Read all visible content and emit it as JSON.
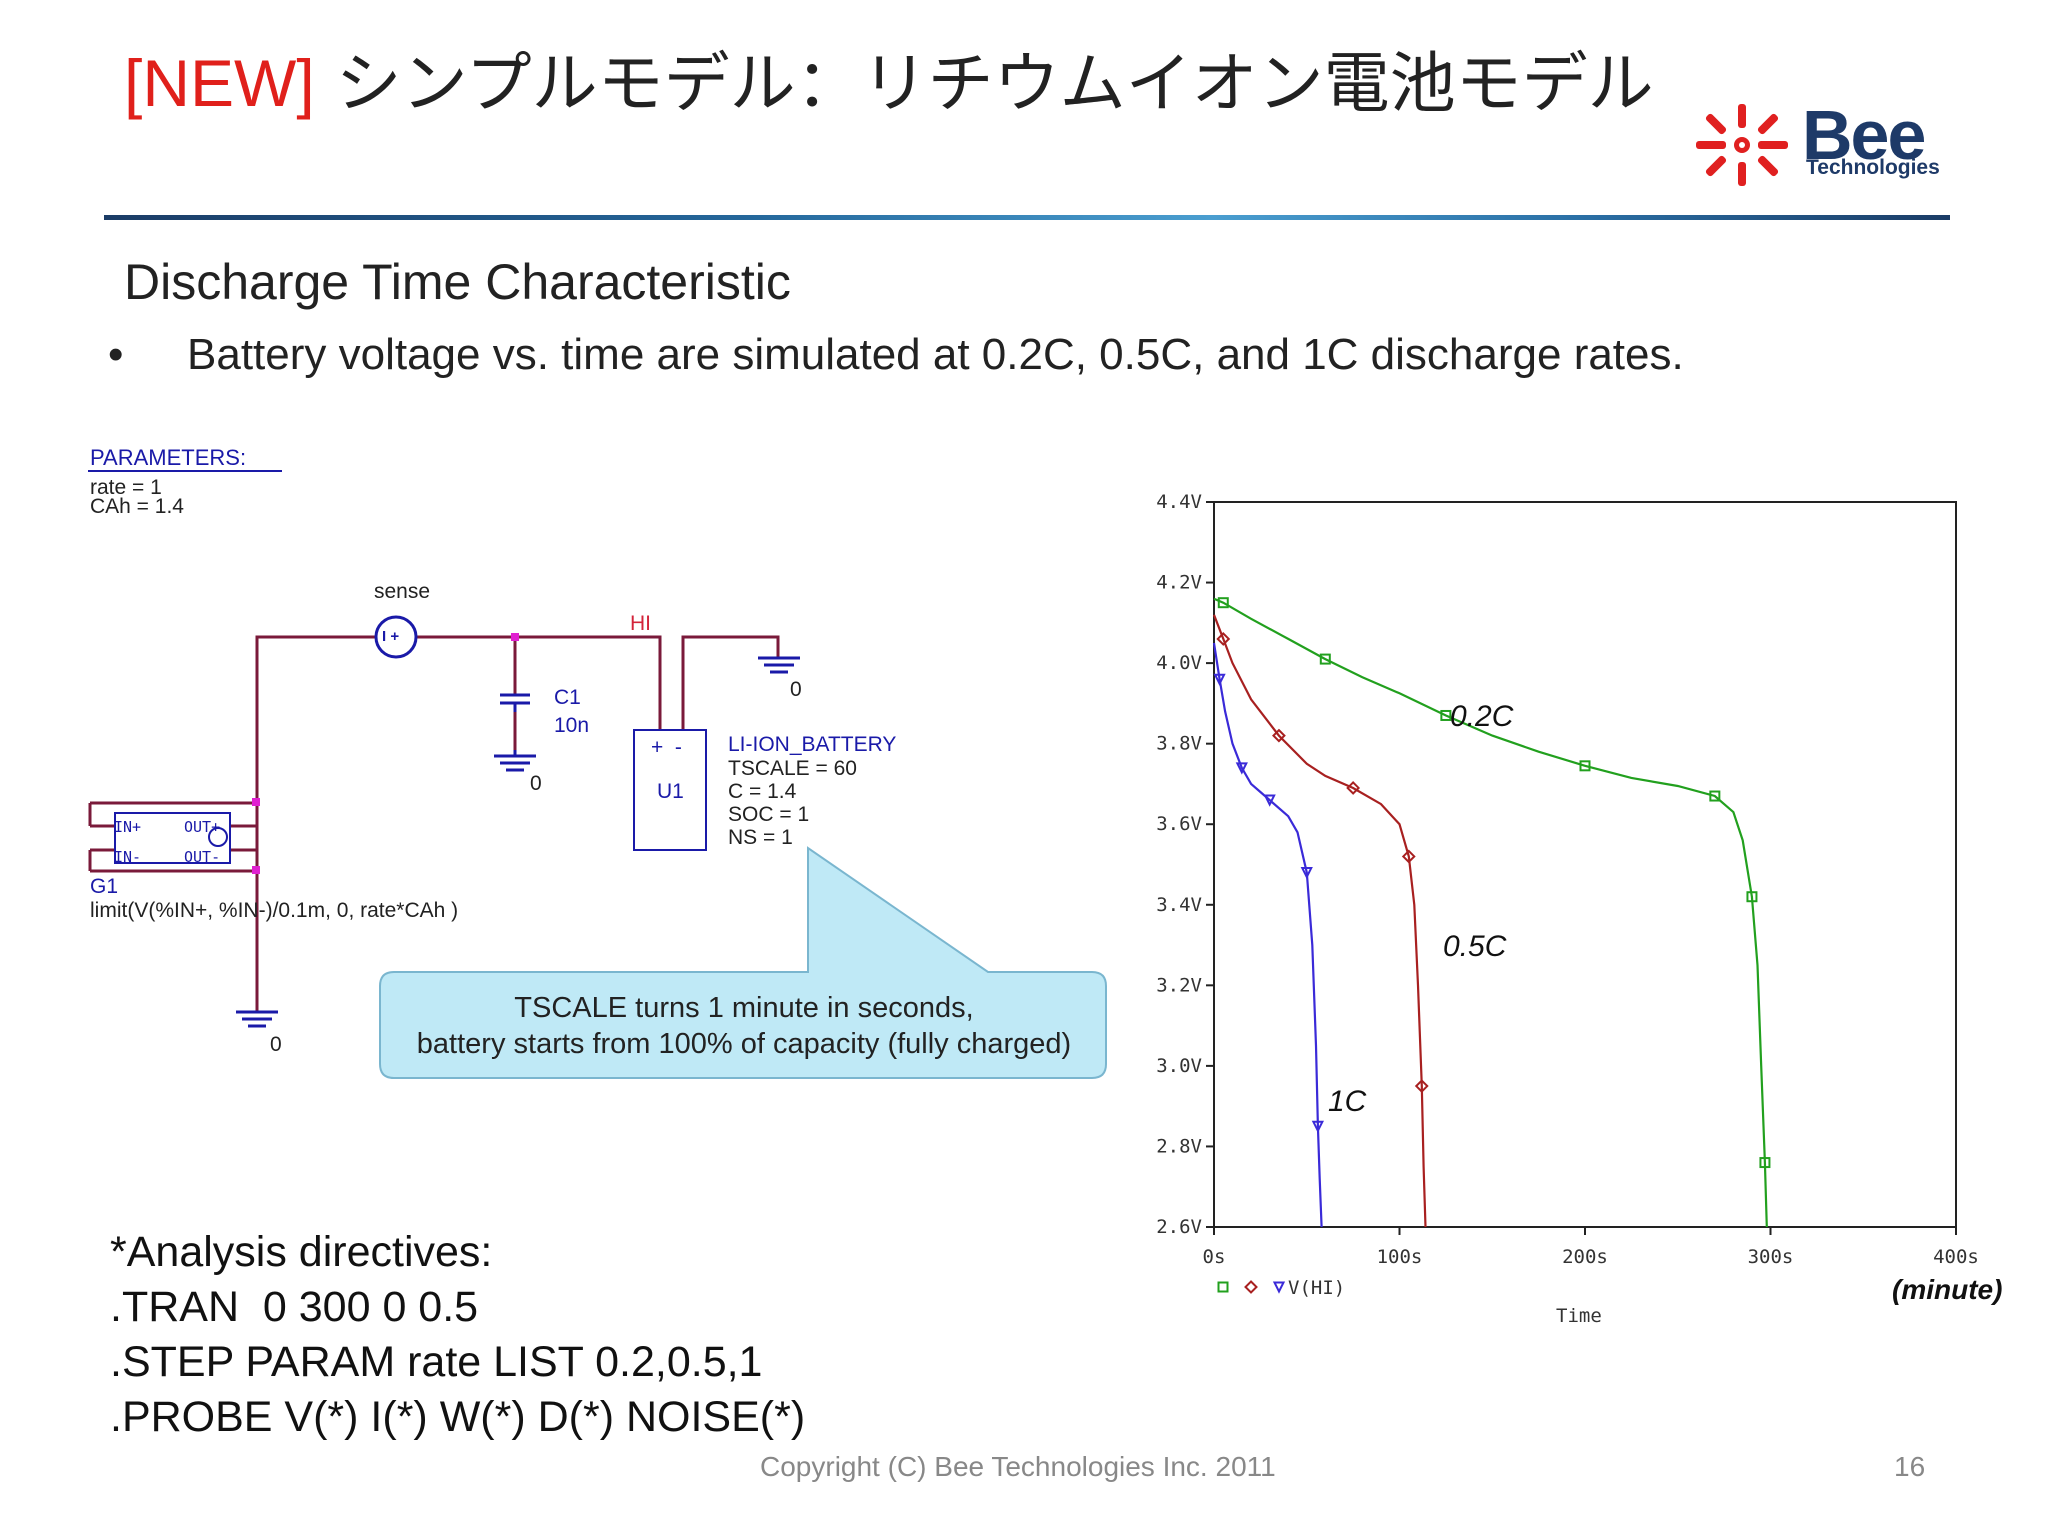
{
  "header": {
    "tag": "[NEW]",
    "title_jp": " シンプルモデル：リチウムイオン電池モデル",
    "logo_name": "Bee",
    "logo_sub": "Technologies"
  },
  "content": {
    "subtitle": "Discharge Time Characteristic",
    "bullet": "Battery voltage vs. time are simulated at 0.2C, 0.5C, and 1C discharge rates."
  },
  "schematic": {
    "parameters_label": "PARAMETERS:",
    "param_rate": "rate = 1",
    "param_cah": "CAh = 1.4",
    "sense_label": "sense",
    "hi_label": "HI",
    "c1_name": "C1",
    "c1_value": "10n",
    "ground_label": "0",
    "u1_name": "U1",
    "u1_pins": "+  -",
    "battery_name": "LI-ION_BATTERY",
    "battery_params": [
      "TSCALE = 60",
      "C = 1.4",
      "SOC = 1",
      "NS = 1"
    ],
    "g1_name": "G1",
    "g1_pins": [
      "IN+",
      "OUT+",
      "IN-",
      "OUT-"
    ],
    "g1_expr": "limit(V(%IN+, %IN-)/0.1m, 0, rate*CAh )",
    "source_symbol": "I +"
  },
  "callout": {
    "line1": "TSCALE turns 1 minute in seconds,",
    "line2": "battery starts from 100% of capacity (fully charged)"
  },
  "directives": {
    "heading": "*Analysis directives:",
    "lines": [
      ".TRAN  0 300 0 0.5",
      ".STEP PARAM rate LIST 0.2,0.5,1",
      ".PROBE V(*) I(*) W(*) D(*) NOISE(*)"
    ]
  },
  "chart_data": {
    "type": "line",
    "title": "",
    "xlabel": "Time",
    "x_unit_note": "(minute)",
    "legend_text": "V(HI)",
    "ylim": [
      2.6,
      4.4
    ],
    "xlim": [
      0,
      400
    ],
    "y_ticks": [
      "4.4V",
      "4.2V",
      "4.0V",
      "3.8V",
      "3.6V",
      "3.4V",
      "3.2V",
      "3.0V",
      "2.8V",
      "2.6V"
    ],
    "x_ticks": [
      "0s",
      "100s",
      "200s",
      "300s",
      "400s"
    ],
    "series": [
      {
        "name": "0.2C",
        "color": "#22a01e",
        "marker": "square",
        "x": [
          0,
          5,
          20,
          40,
          60,
          80,
          100,
          125,
          150,
          175,
          200,
          225,
          250,
          270,
          280,
          285,
          290,
          293,
          295,
          297,
          298
        ],
        "y": [
          4.16,
          4.15,
          4.11,
          4.06,
          4.01,
          3.965,
          3.925,
          3.87,
          3.82,
          3.78,
          3.745,
          3.715,
          3.695,
          3.67,
          3.63,
          3.56,
          3.42,
          3.25,
          3.0,
          2.76,
          2.6
        ]
      },
      {
        "name": "0.5C",
        "color": "#a82020",
        "marker": "diamond",
        "x": [
          0,
          5,
          10,
          20,
          35,
          50,
          60,
          75,
          90,
          100,
          105,
          108,
          110,
          112,
          113,
          114
        ],
        "y": [
          4.12,
          4.06,
          4.0,
          3.91,
          3.82,
          3.75,
          3.72,
          3.69,
          3.65,
          3.6,
          3.52,
          3.4,
          3.2,
          2.95,
          2.75,
          2.6
        ]
      },
      {
        "name": "1C",
        "color": "#3a2ad8",
        "marker": "triangle",
        "x": [
          0,
          3,
          6,
          10,
          15,
          20,
          25,
          30,
          40,
          45,
          50,
          53,
          55,
          56,
          57,
          58
        ],
        "y": [
          4.05,
          3.96,
          3.88,
          3.8,
          3.74,
          3.7,
          3.68,
          3.66,
          3.62,
          3.58,
          3.48,
          3.3,
          3.05,
          2.85,
          2.72,
          2.6
        ]
      }
    ],
    "curve_labels": [
      "0.2C",
      "0.5C",
      "1C"
    ]
  },
  "footer": {
    "copyright": "Copyright (C) Bee Technologies Inc. 2011",
    "page_number": "16"
  }
}
